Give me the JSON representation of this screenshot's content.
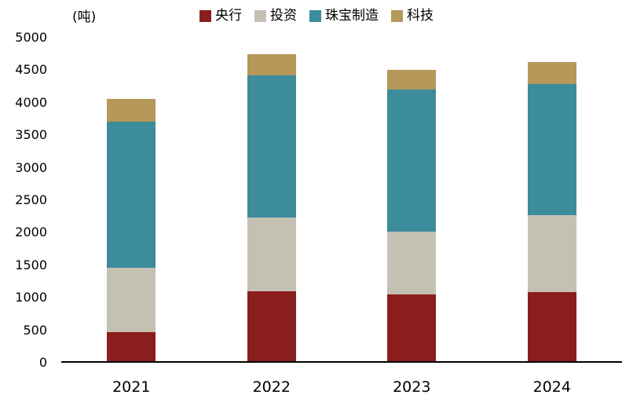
{
  "unit_label": "(吨)",
  "chart_data": {
    "type": "bar",
    "stacked": true,
    "title": "",
    "ylabel": "(吨)",
    "xlabel": "",
    "grid": false,
    "legend_position": "top",
    "ylim": [
      0,
      5000
    ],
    "ytick_step": 500,
    "yticks": [
      0,
      500,
      1000,
      1500,
      2000,
      2500,
      3000,
      3500,
      4000,
      4500,
      5000
    ],
    "categories": [
      "2021",
      "2022",
      "2023",
      "2024"
    ],
    "series": [
      {
        "name": "央行",
        "color": "#8A1E1E",
        "values": [
          450,
          1080,
          1030,
          1070
        ]
      },
      {
        "name": "投资",
        "color": "#C4C1B3",
        "values": [
          1000,
          1140,
          970,
          1190
        ]
      },
      {
        "name": "珠宝制造",
        "color": "#3D8C9C",
        "values": [
          2250,
          2200,
          2200,
          2030
        ]
      },
      {
        "name": "科技",
        "color": "#B6985A",
        "values": [
          350,
          320,
          300,
          330
        ]
      }
    ],
    "totals": [
      4050,
      4740,
      4500,
      4620
    ]
  }
}
